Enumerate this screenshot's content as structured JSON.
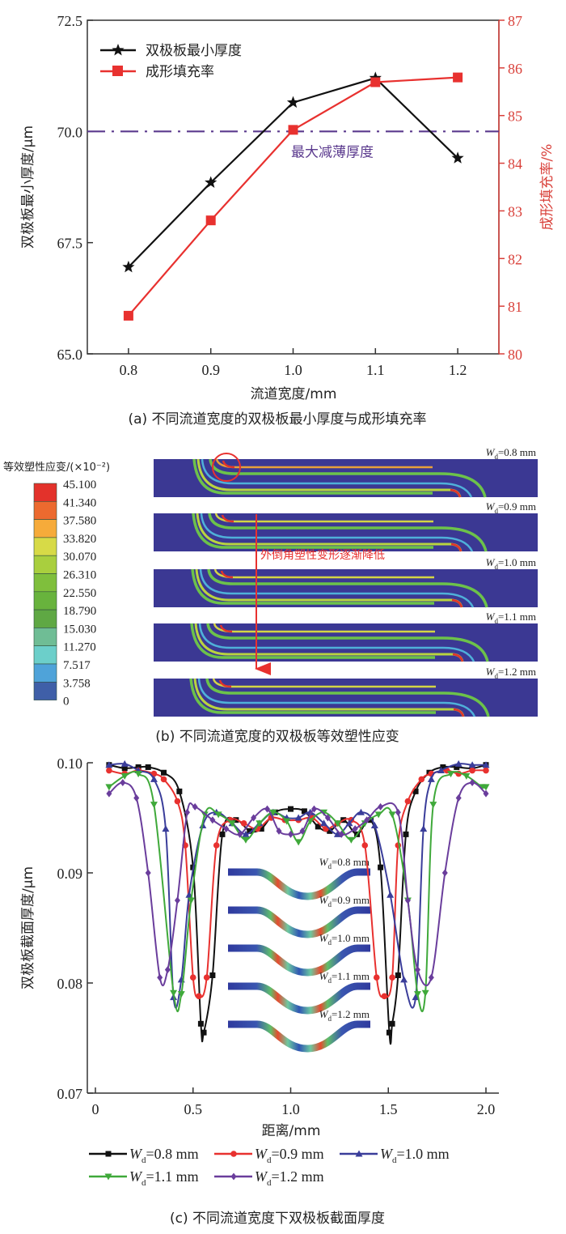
{
  "chart_data": [
    {
      "id": "a",
      "type": "line",
      "caption": "(a) 不同流道宽度的双极板最小厚度与成形填充率",
      "xlabel": "流道宽度/mm",
      "ylabel_left": "双极板最小厚度/μm",
      "ylabel_right": "成形填充率/%",
      "x": [
        0.8,
        0.9,
        1.0,
        1.1,
        1.2
      ],
      "x_tick_labels": [
        "0.8",
        "0.9",
        "1.0",
        "1.1",
        "1.2"
      ],
      "xlim": [
        0.75,
        1.25
      ],
      "ylim_left": [
        65.0,
        72.5
      ],
      "y_left_ticks": [
        "65.0",
        "67.5",
        "70.0",
        "72.5"
      ],
      "y_left_tick_values": [
        65.0,
        67.5,
        70.0,
        72.5
      ],
      "ylim_right": [
        80,
        87
      ],
      "y_right_ticks": [
        "80",
        "81",
        "82",
        "83",
        "84",
        "85",
        "86",
        "87"
      ],
      "y_right_tick_values": [
        80,
        81,
        82,
        83,
        84,
        85,
        86,
        87
      ],
      "series": [
        {
          "name": "双极板最小厚度",
          "axis": "left",
          "marker": "star",
          "color": "#111111",
          "values": [
            66.95,
            68.85,
            70.65,
            71.2,
            69.4
          ]
        },
        {
          "name": "成形填充率",
          "axis": "right",
          "marker": "square",
          "color": "#e8312f",
          "values": [
            80.8,
            82.8,
            84.7,
            85.7,
            85.8
          ]
        }
      ],
      "reference_line": {
        "label": "最大减薄厚度",
        "value": 70.0,
        "axis": "left",
        "color": "#5b3a8e"
      },
      "legend": "top-left",
      "colors": {
        "right_axis": "#d9403a"
      }
    },
    {
      "id": "b",
      "type": "heatmap",
      "caption": "(b) 不同流道宽度的双极板等效塑性应变",
      "colorbar_title": "等效塑性应变/(×10⁻²)",
      "colorbar_labels": [
        "45.100",
        "41.340",
        "37.580",
        "33.820",
        "30.070",
        "26.310",
        "22.550",
        "18.790",
        "15.030",
        "11.270",
        "7.517",
        "3.758",
        "0"
      ],
      "colorbar_colors": [
        "#e3322b",
        "#ec6a2f",
        "#f6ab3a",
        "#d7da47",
        "#a9cf3e",
        "#7fbf3c",
        "#68b33d",
        "#5fa844",
        "#6fbd95",
        "#6ccfca",
        "#4fa3d9",
        "#3f5fa8",
        "#3d3f97"
      ],
      "panels": [
        {
          "label": "W",
          "sub": "d",
          "value": "=0.8 mm"
        },
        {
          "label": "W",
          "sub": "d",
          "value": "=0.9 mm"
        },
        {
          "label": "W",
          "sub": "d",
          "value": "=1.0 mm"
        },
        {
          "label": "W",
          "sub": "d",
          "value": "=1.1 mm"
        },
        {
          "label": "W",
          "sub": "d",
          "value": "=1.2 mm"
        }
      ],
      "annotation": "外倒角塑性变形逐渐降低",
      "colors": {
        "background": "#3b3893",
        "annotation": "#e8312f"
      }
    },
    {
      "id": "c",
      "type": "line",
      "caption": "(c) 不同流道宽度下双极板截面厚度",
      "xlabel": "距离/mm",
      "ylabel": "双极板截面厚度/μm",
      "xlim": [
        -0.03,
        2.05
      ],
      "ylim": [
        0.07,
        0.1
      ],
      "x_ticks": [
        "0",
        "0.5",
        "1.0",
        "1.5",
        "2.0"
      ],
      "x_tick_values": [
        0,
        0.5,
        1.0,
        1.5,
        2.0
      ],
      "y_ticks": [
        "0.07",
        "0.08",
        "0.09",
        "0.10"
      ],
      "y_tick_values": [
        0.07,
        0.08,
        0.09,
        0.1
      ],
      "legend": "bottom",
      "series": [
        {
          "name": "=0.8 mm",
          "label": "W",
          "sub": "d",
          "color": "#111111",
          "marker": "square",
          "x": [
            0.07,
            0.15,
            0.22,
            0.27,
            0.35,
            0.43,
            0.5,
            0.54,
            0.555,
            0.6,
            0.65,
            0.72,
            0.79,
            0.85,
            0.92,
            1.0,
            1.07,
            1.14,
            1.2,
            1.27,
            1.34,
            1.41,
            1.46,
            1.505,
            1.52,
            1.55,
            1.59,
            1.64,
            1.71,
            1.78,
            1.85,
            1.93,
            2.0
          ],
          "y": [
            0.0998,
            0.0995,
            0.0996,
            0.0996,
            0.0991,
            0.0974,
            0.0905,
            0.0763,
            0.0755,
            0.0807,
            0.0935,
            0.0948,
            0.0938,
            0.094,
            0.0955,
            0.0958,
            0.0956,
            0.0942,
            0.0938,
            0.0948,
            0.0935,
            0.0948,
            0.0905,
            0.0755,
            0.0763,
            0.0807,
            0.0935,
            0.0974,
            0.0991,
            0.0996,
            0.0996,
            0.0995,
            0.0998
          ]
        },
        {
          "name": "=0.9 mm",
          "label": "W",
          "sub": "d",
          "color": "#e8312f",
          "marker": "circle",
          "x": [
            0.07,
            0.15,
            0.22,
            0.3,
            0.35,
            0.42,
            0.46,
            0.5,
            0.53,
            0.57,
            0.62,
            0.69,
            0.76,
            0.83,
            0.9,
            0.97,
            1.04,
            1.11,
            1.18,
            1.24,
            1.31,
            1.38,
            1.44,
            1.48,
            1.52,
            1.55,
            1.6,
            1.67,
            1.72,
            1.8,
            1.86,
            1.93,
            2.0
          ],
          "y": [
            0.0993,
            0.099,
            0.0993,
            0.099,
            0.0985,
            0.0965,
            0.0925,
            0.0805,
            0.0788,
            0.0805,
            0.0925,
            0.0948,
            0.0945,
            0.094,
            0.095,
            0.0948,
            0.0948,
            0.095,
            0.094,
            0.0945,
            0.0948,
            0.0925,
            0.0805,
            0.0788,
            0.0805,
            0.0925,
            0.0965,
            0.0985,
            0.099,
            0.0993,
            0.099,
            0.0993,
            0.0993
          ]
        },
        {
          "name": "=1.0 mm",
          "label": "W",
          "sub": "d",
          "color": "#3a3d9a",
          "marker": "triangle",
          "x": [
            0.07,
            0.15,
            0.22,
            0.3,
            0.36,
            0.4,
            0.44,
            0.48,
            0.55,
            0.62,
            0.7,
            0.77,
            0.84,
            0.91,
            0.98,
            1.04,
            1.1,
            1.17,
            1.24,
            1.3,
            1.36,
            1.43,
            1.51,
            1.58,
            1.64,
            1.68,
            1.72,
            1.77,
            1.86,
            1.93,
            2.0
          ],
          "y": [
            0.0998,
            0.0999,
            0.0993,
            0.0985,
            0.094,
            0.0787,
            0.0803,
            0.088,
            0.0943,
            0.0955,
            0.0945,
            0.0935,
            0.0945,
            0.0955,
            0.095,
            0.095,
            0.0955,
            0.0945,
            0.0935,
            0.0945,
            0.0955,
            0.0943,
            0.088,
            0.0803,
            0.0787,
            0.094,
            0.0985,
            0.0993,
            0.0999,
            0.0998,
            0.0998
          ]
        },
        {
          "name": "=1.1 mm",
          "label": "W",
          "sub": "d",
          "color": "#3fa93a",
          "marker": "triangle-down",
          "x": [
            0.07,
            0.15,
            0.22,
            0.3,
            0.4,
            0.44,
            0.49,
            0.56,
            0.63,
            0.7,
            0.77,
            0.84,
            0.91,
            0.98,
            1.04,
            1.1,
            1.17,
            1.24,
            1.31,
            1.38,
            1.45,
            1.52,
            1.6,
            1.65,
            1.69,
            1.73,
            1.82,
            1.9,
            1.98,
            2.0
          ],
          "y": [
            0.0978,
            0.0988,
            0.099,
            0.0962,
            0.0791,
            0.079,
            0.0875,
            0.0953,
            0.0953,
            0.0945,
            0.093,
            0.0945,
            0.0955,
            0.0947,
            0.0928,
            0.0947,
            0.0955,
            0.0945,
            0.093,
            0.0945,
            0.0953,
            0.0953,
            0.0875,
            0.079,
            0.0791,
            0.0962,
            0.099,
            0.0988,
            0.0978,
            0.0978
          ]
        },
        {
          "name": "=1.2 mm",
          "label": "W",
          "sub": "d",
          "color": "#6a3d9c",
          "marker": "diamond",
          "x": [
            0.07,
            0.14,
            0.21,
            0.27,
            0.33,
            0.37,
            0.42,
            0.47,
            0.51,
            0.6,
            0.67,
            0.74,
            0.81,
            0.88,
            0.94,
            1.0,
            1.06,
            1.12,
            1.19,
            1.26,
            1.33,
            1.39,
            1.46,
            1.55,
            1.6,
            1.65,
            1.72,
            1.79,
            1.86,
            1.93,
            2.0
          ],
          "y": [
            0.0972,
            0.0982,
            0.0968,
            0.09,
            0.0805,
            0.0812,
            0.0875,
            0.0955,
            0.096,
            0.0948,
            0.094,
            0.0935,
            0.095,
            0.0958,
            0.0938,
            0.0935,
            0.0938,
            0.0958,
            0.095,
            0.0935,
            0.094,
            0.0948,
            0.096,
            0.0955,
            0.0875,
            0.0812,
            0.0805,
            0.09,
            0.0968,
            0.0982,
            0.0972
          ]
        }
      ],
      "inset_labels": [
        {
          "label": "W",
          "sub": "d",
          "value": "=0.8 mm"
        },
        {
          "label": "W",
          "sub": "d",
          "value": "=0.9 mm"
        },
        {
          "label": "W",
          "sub": "d",
          "value": "=1.0 mm"
        },
        {
          "label": "W",
          "sub": "d",
          "value": "=1.1 mm"
        },
        {
          "label": "W",
          "sub": "d",
          "value": "=1.2 mm"
        }
      ]
    }
  ]
}
